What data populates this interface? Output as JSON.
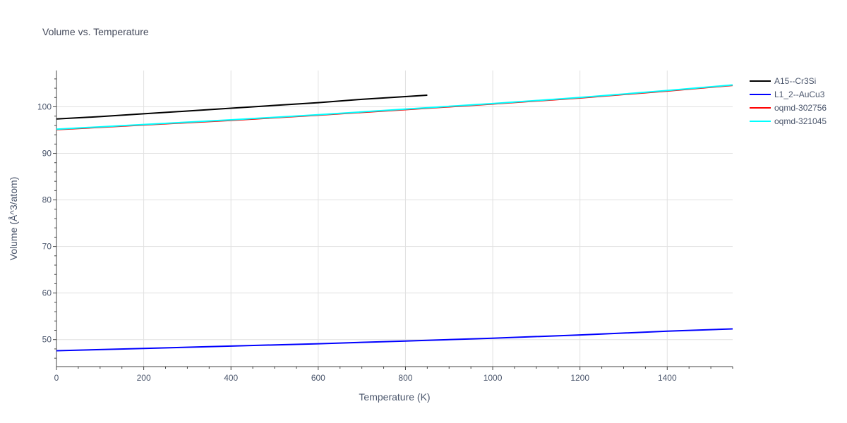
{
  "chart_data": {
    "type": "line",
    "title": "Volume vs. Temperature",
    "xlabel": "Temperature (K)",
    "ylabel": "Volume (Å^3/atom)",
    "xlim": [
      0,
      1550
    ],
    "ylim": [
      44.2,
      107.8
    ],
    "x_ticks": [
      0,
      200,
      400,
      600,
      800,
      1000,
      1200,
      1400
    ],
    "y_ticks": [
      50,
      60,
      70,
      80,
      90,
      100
    ],
    "grid": true,
    "legend_position": "top-right",
    "series": [
      {
        "name": "A15--Cr3Si",
        "color": "#000000",
        "x": [
          0,
          100,
          200,
          300,
          400,
          500,
          600,
          700,
          800,
          850
        ],
        "y": [
          97.4,
          97.9,
          98.5,
          99.1,
          99.7,
          100.3,
          100.9,
          101.6,
          102.2,
          102.5
        ]
      },
      {
        "name": "L1_2--AuCu3",
        "color": "#0000ff",
        "x": [
          0,
          200,
          400,
          600,
          800,
          1000,
          1200,
          1400,
          1550
        ],
        "y": [
          47.6,
          48.1,
          48.6,
          49.1,
          49.7,
          50.3,
          51.0,
          51.8,
          52.3
        ]
      },
      {
        "name": "oqmd-302756",
        "color": "#ff0000",
        "x": [
          0,
          200,
          400,
          600,
          800,
          1000,
          1200,
          1400,
          1550
        ],
        "y": [
          95.1,
          96.1,
          97.1,
          98.2,
          99.4,
          100.6,
          101.9,
          103.4,
          104.6
        ]
      },
      {
        "name": "oqmd-321045",
        "color": "#00ffff",
        "x": [
          0,
          200,
          400,
          600,
          800,
          1000,
          1200,
          1400,
          1550
        ],
        "y": [
          95.2,
          96.2,
          97.2,
          98.3,
          99.5,
          100.7,
          102.0,
          103.5,
          104.7
        ]
      }
    ]
  }
}
